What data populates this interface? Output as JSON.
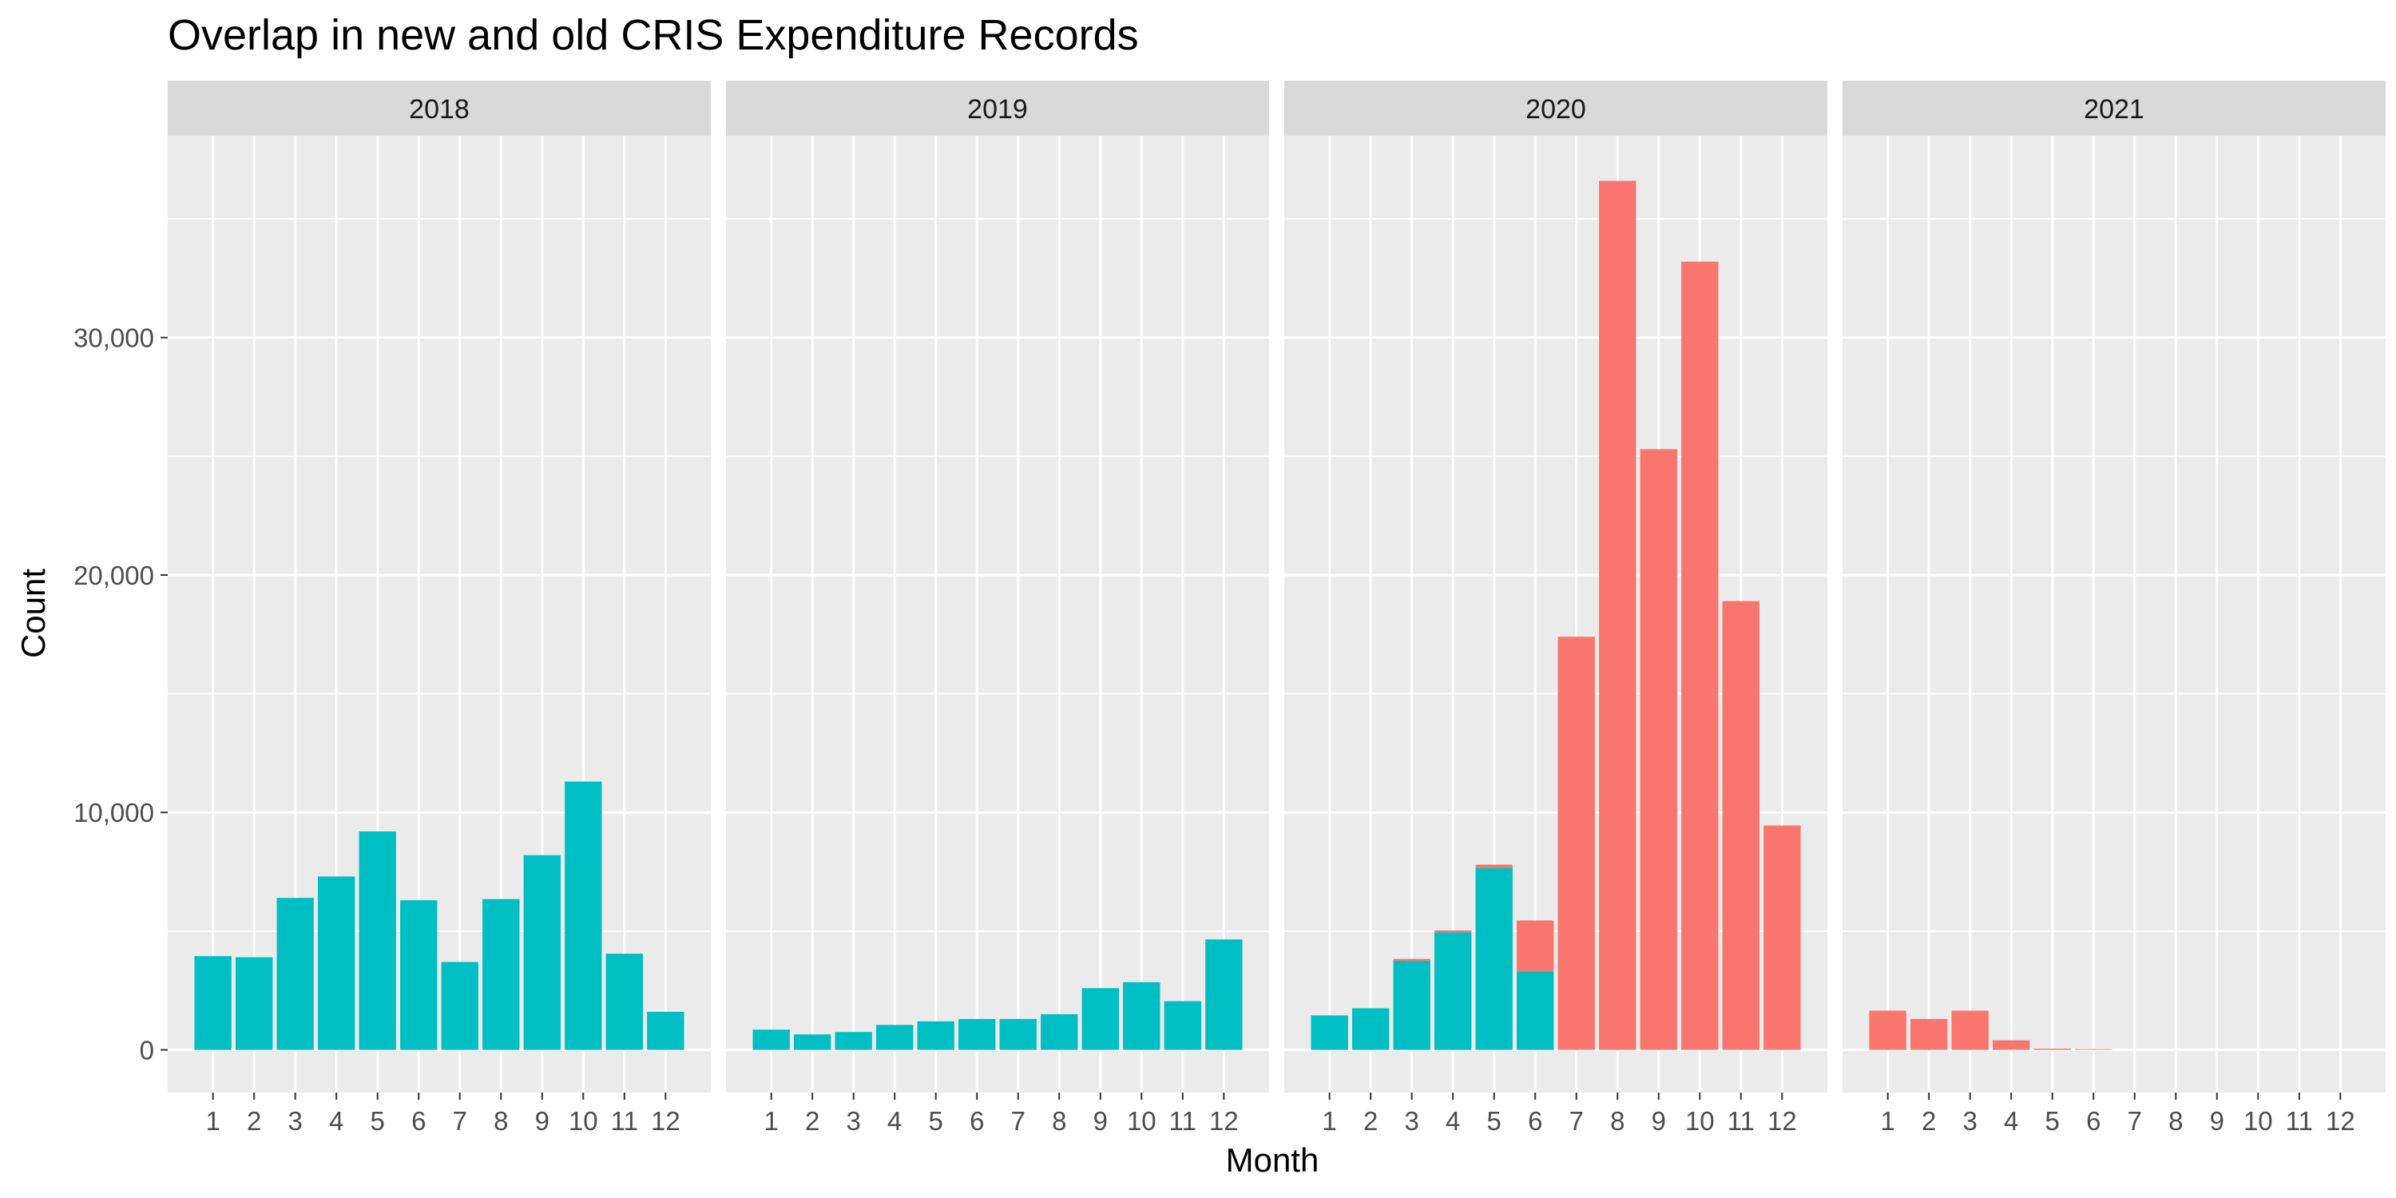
{
  "chart_data": {
    "type": "bar",
    "stacked": true,
    "faceted_by": "year",
    "title": "Overlap in new and old CRIS Expenditure Records",
    "xlabel": "Month",
    "ylabel": "Count",
    "ylim": [
      -1800,
      38500
    ],
    "y_ticks": [
      0,
      10000,
      20000,
      30000
    ],
    "y_tick_labels": [
      "0",
      "10,000",
      "20,000",
      "30,000"
    ],
    "categories": [
      "1",
      "2",
      "3",
      "4",
      "5",
      "6",
      "7",
      "8",
      "9",
      "10",
      "11",
      "12"
    ],
    "grid": true,
    "legend": "none",
    "colors": {
      "teal": "#00BFC4",
      "salmon": "#F8766D",
      "panel": "#EBEBEB",
      "strip": "#D9D9D9",
      "grid": "#FFFFFF"
    },
    "panels": [
      {
        "label": "2018",
        "series": [
          {
            "color": "#00BFC4",
            "values": [
              3950,
              3900,
              6400,
              7300,
              9200,
              6300,
              3700,
              6350,
              8200,
              11300,
              4050,
              1600
            ]
          },
          {
            "color": "#F8766D",
            "values": [
              0,
              0,
              0,
              0,
              0,
              0,
              0,
              0,
              0,
              0,
              0,
              0
            ]
          }
        ]
      },
      {
        "label": "2019",
        "series": [
          {
            "color": "#00BFC4",
            "values": [
              850,
              650,
              750,
              1050,
              1200,
              1300,
              1300,
              1500,
              2600,
              2850,
              2050,
              4650
            ]
          },
          {
            "color": "#F8766D",
            "values": [
              0,
              0,
              0,
              0,
              0,
              0,
              0,
              0,
              0,
              0,
              0,
              0
            ]
          }
        ]
      },
      {
        "label": "2020",
        "series": [
          {
            "color": "#00BFC4",
            "values": [
              1450,
              1750,
              3750,
              4950,
              7650,
              3300,
              0,
              0,
              0,
              0,
              0,
              0
            ]
          },
          {
            "color": "#F8766D",
            "values": [
              0,
              0,
              80,
              80,
              150,
              2150,
              17400,
              36600,
              25300,
              33200,
              18900,
              9450
            ]
          }
        ]
      },
      {
        "label": "2021",
        "series": [
          {
            "color": "#00BFC4",
            "values": [
              0,
              0,
              0,
              0,
              0,
              0,
              0,
              0,
              0,
              0,
              0,
              0
            ]
          },
          {
            "color": "#F8766D",
            "values": [
              1650,
              1300,
              1650,
              400,
              50,
              30,
              0,
              0,
              0,
              0,
              0,
              0
            ]
          }
        ]
      }
    ]
  }
}
